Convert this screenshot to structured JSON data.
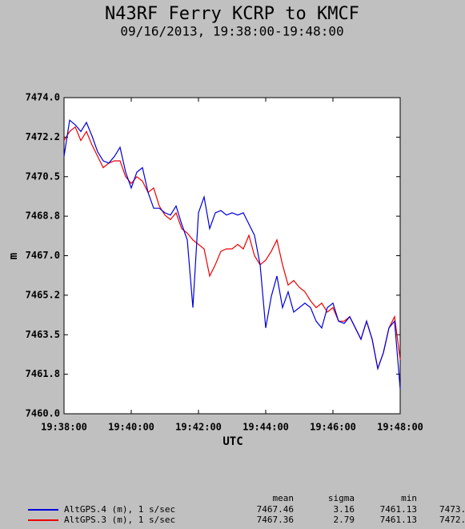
{
  "chart_data": {
    "type": "line",
    "title": "N43RF Ferry KCRP to KMCF",
    "subtitle": "09/16/2013, 19:38:00-19:48:00",
    "x_label": "UTC",
    "y_label": "m",
    "x": [
      0,
      10,
      20,
      30,
      40,
      50,
      60,
      70,
      80,
      90,
      100,
      110,
      120,
      130,
      140,
      150,
      160,
      170,
      180,
      190,
      200,
      210,
      220,
      230,
      240,
      250,
      260,
      270,
      280,
      290,
      300,
      310,
      320,
      330,
      340,
      350,
      360,
      370,
      380,
      390,
      400,
      410,
      420,
      430,
      440,
      450,
      460,
      470,
      480,
      490,
      500,
      510,
      520,
      530,
      540,
      550,
      560,
      570,
      580,
      590,
      600
    ],
    "xlim": [
      0,
      600
    ],
    "xticks": [
      {
        "value": 0,
        "label": "19:38:00"
      },
      {
        "value": 120,
        "label": "19:40:00"
      },
      {
        "value": 240,
        "label": "19:42:00"
      },
      {
        "value": 360,
        "label": "19:44:00"
      },
      {
        "value": 480,
        "label": "19:46:00"
      },
      {
        "value": 600,
        "label": "19:48:00"
      }
    ],
    "ylim": [
      7460.0,
      7474.0
    ],
    "yticks": [
      {
        "value": 7460.0,
        "label": "7460.0"
      },
      {
        "value": 7461.75,
        "label": "7461.8"
      },
      {
        "value": 7463.5,
        "label": "7463.5"
      },
      {
        "value": 7465.25,
        "label": "7465.2"
      },
      {
        "value": 7467.0,
        "label": "7467.0"
      },
      {
        "value": 7468.75,
        "label": "7468.8"
      },
      {
        "value": 7470.5,
        "label": "7470.5"
      },
      {
        "value": 7472.25,
        "label": "7472.2"
      },
      {
        "value": 7474.0,
        "label": "7474.0"
      }
    ],
    "grid": false,
    "stats_header": [
      "mean",
      "sigma",
      "min",
      "m"
    ],
    "series": [
      {
        "name": "AltGPS.4 (m), 1 s/sec",
        "color": "#0000dd",
        "values": [
          7471.4,
          7473.0,
          7472.8,
          7472.5,
          7472.9,
          7472.3,
          7471.6,
          7471.2,
          7471.1,
          7471.4,
          7471.8,
          7470.7,
          7470.0,
          7470.7,
          7470.9,
          7469.8,
          7469.1,
          7469.1,
          7468.9,
          7468.8,
          7469.2,
          7468.4,
          7467.7,
          7464.7,
          7468.9,
          7469.6,
          7468.2,
          7468.9,
          7469.0,
          7468.8,
          7468.9,
          7468.8,
          7468.9,
          7468.4,
          7467.9,
          7466.6,
          7463.8,
          7465.2,
          7466.1,
          7464.7,
          7465.4,
          7464.5,
          7464.7,
          7464.9,
          7464.7,
          7464.1,
          7463.8,
          7464.7,
          7464.9,
          7464.1,
          7464.0,
          7464.3,
          7463.8,
          7463.3,
          7464.1,
          7463.3,
          7462.0,
          7462.7,
          7463.8,
          7464.1,
          7461.1
        ],
        "stats": [
          "7467.46",
          "3.16",
          "7461.13",
          "7473."
        ]
      },
      {
        "name": "AltGPS.3 (m), 1 s/sec",
        "color": "#ee0000",
        "values": [
          7472.1,
          7472.5,
          7472.7,
          7472.1,
          7472.5,
          7471.9,
          7471.4,
          7470.9,
          7471.1,
          7471.2,
          7471.2,
          7470.5,
          7470.2,
          7470.5,
          7470.3,
          7469.8,
          7470.0,
          7469.2,
          7468.8,
          7468.6,
          7468.9,
          7468.2,
          7468.0,
          7467.7,
          7467.5,
          7467.3,
          7466.1,
          7466.6,
          7467.2,
          7467.3,
          7467.3,
          7467.5,
          7467.3,
          7467.9,
          7467.0,
          7466.6,
          7466.8,
          7467.2,
          7467.7,
          7466.6,
          7465.7,
          7465.9,
          7465.6,
          7465.4,
          7465.0,
          7464.7,
          7464.9,
          7464.5,
          7464.7,
          7464.1,
          7464.1,
          7464.3,
          7463.8,
          7463.3,
          7464.1,
          7463.3,
          7462.0,
          7462.7,
          7463.8,
          7464.3,
          7462.4
        ],
        "stats": [
          "7467.36",
          "2.79",
          "7461.13",
          "7472."
        ]
      }
    ]
  }
}
